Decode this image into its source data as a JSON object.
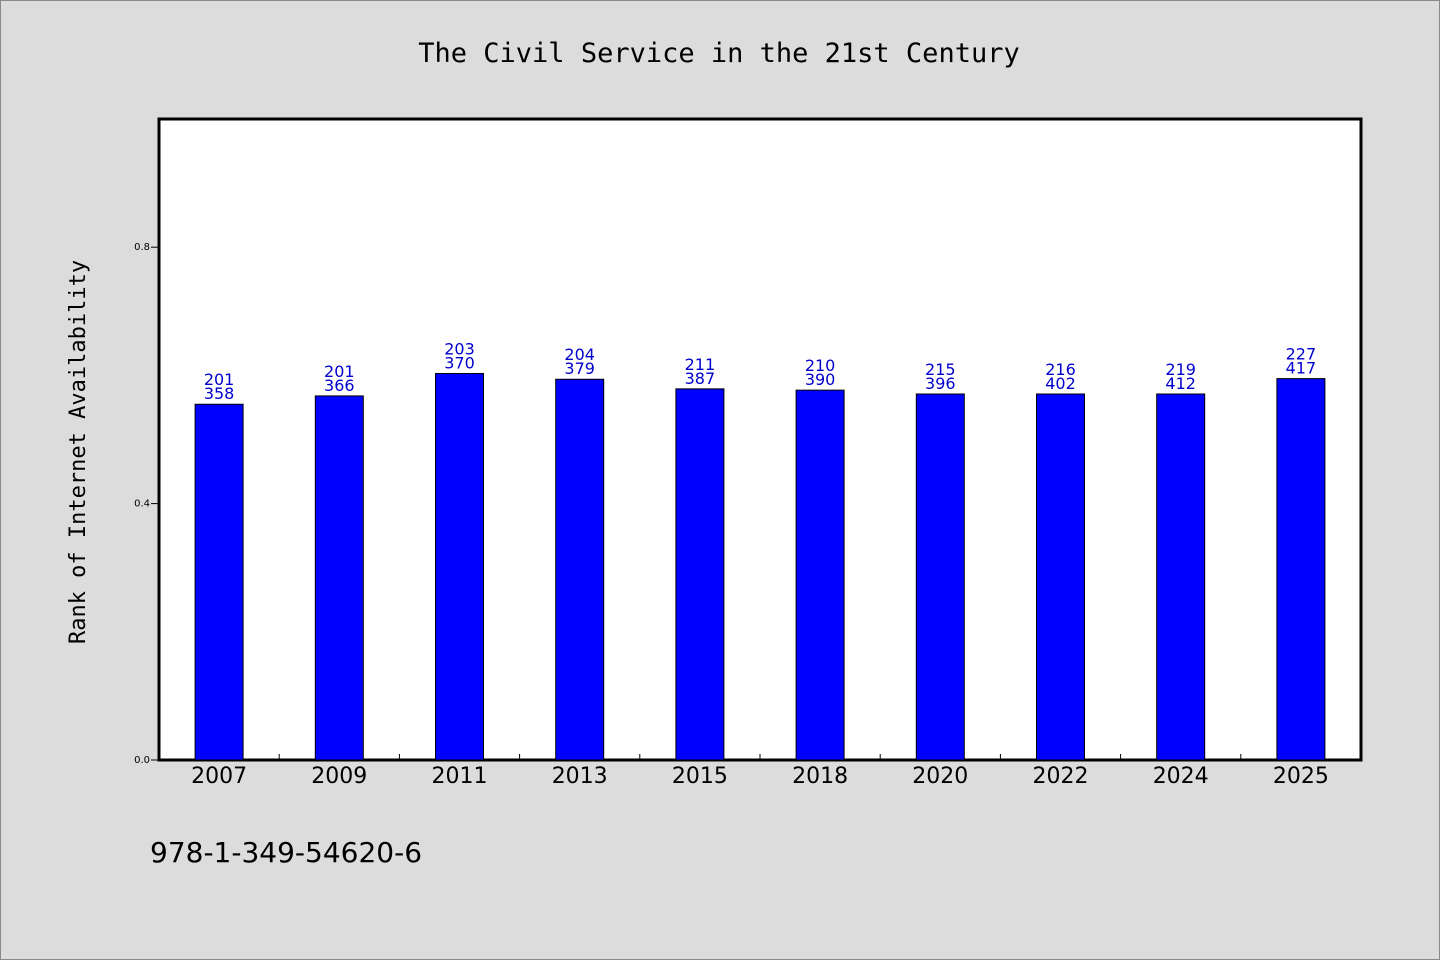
{
  "chart_data": {
    "type": "bar",
    "title": "The Civil Service in the 21st Century",
    "ylabel": "Rank of Internet Availability",
    "xlabel": "",
    "categories": [
      "2007",
      "2009",
      "2011",
      "2013",
      "2015",
      "2018",
      "2020",
      "2022",
      "2024",
      "2025"
    ],
    "values": [
      0.555,
      0.568,
      0.603,
      0.594,
      0.579,
      0.577,
      0.571,
      0.571,
      0.571,
      0.595
    ],
    "data_labels_top": [
      "201",
      "201",
      "203",
      "204",
      "211",
      "210",
      "215",
      "216",
      "219",
      "227"
    ],
    "data_labels_bottom": [
      "358",
      "366",
      "370",
      "379",
      "387",
      "390",
      "396",
      "402",
      "412",
      "417"
    ],
    "ylim": [
      0,
      1.0
    ],
    "yticks": [
      "0.0",
      "0.4",
      "0.8"
    ],
    "ytick_values": [
      0.0,
      0.4,
      0.8
    ],
    "grid": false,
    "bar_color": "#0000ff",
    "label_color": "#0000cc",
    "plot_background": "#ffffff",
    "page_background": "#dcdcdc"
  },
  "footer": {
    "isbn": "978-1-349-54620-6"
  }
}
